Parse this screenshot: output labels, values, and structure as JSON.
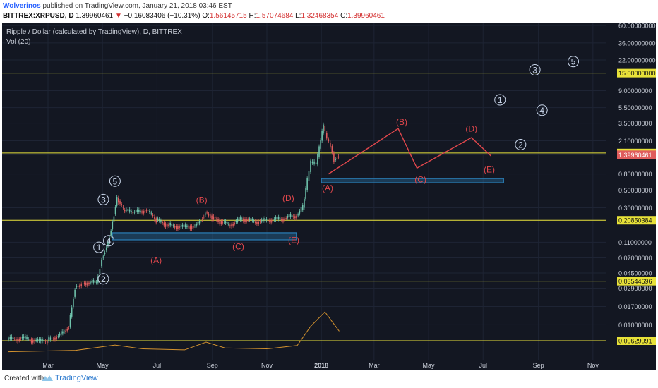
{
  "header": {
    "author": "Wolverinos",
    "published": "published on TradingView.com, January 21, 2018 03:46 EST",
    "symbol": "BITTREX:XRPUSD, D",
    "last": "1.39960461",
    "change": "−0.16083406 (−10.31%)",
    "ohlc": {
      "o_label": "O:",
      "o": "1.56145715",
      "h_label": "H:",
      "h": "1.57074684",
      "l_label": "L:",
      "l": "1.32468354",
      "c_label": "C:",
      "c": "1.39960461"
    }
  },
  "footer": {
    "created": "Created with",
    "brand": "TradingView"
  },
  "colors": {
    "background": "#131722",
    "grid": "#1e2434",
    "up": "#6fc3ac",
    "down": "#e05c5c",
    "level": "#e8e239",
    "zone": "#2a7fb8",
    "wave_red": "#e0474c",
    "wave_blue": "#c9d6ea",
    "volume_ma": "#d3922e"
  },
  "chart_data": {
    "type": "candlestick",
    "title": "Ripple / Dollar (calculated by TradingView), D, BITTREX",
    "indicator": "Vol (20)",
    "y_scale": "log",
    "y_ticks": [
      "60.00000000",
      "36.00000000",
      "22.00000000",
      "15.00000000",
      "9.00000000",
      "5.50000000",
      "3.50000000",
      "2.10000000",
      "1.47387216",
      "1.39960461",
      "0.80000000",
      "0.50000000",
      "0.30000000",
      "0.20850384",
      "0.11000000",
      "0.07000000",
      "0.04500000",
      "0.03544696",
      "0.02900000",
      "0.01700000",
      "0.01000000",
      "0.00629091"
    ],
    "x_ticks": [
      "Mar",
      "May",
      "Jul",
      "Sep",
      "Nov",
      "2018",
      "Mar",
      "May",
      "Jul",
      "Sep",
      "Nov"
    ],
    "price_series": [
      [
        "2017-01-15",
        0.0065
      ],
      [
        "2017-02-01",
        0.0068
      ],
      [
        "2017-02-20",
        0.0062
      ],
      [
        "2017-03-01",
        0.0063
      ],
      [
        "2017-03-15",
        0.0075
      ],
      [
        "2017-03-25",
        0.0095
      ],
      [
        "2017-04-01",
        0.03
      ],
      [
        "2017-04-10",
        0.034
      ],
      [
        "2017-04-25",
        0.034
      ],
      [
        "2017-05-01",
        0.07
      ],
      [
        "2017-05-08",
        0.11
      ],
      [
        "2017-05-13",
        0.2
      ],
      [
        "2017-05-18",
        0.4
      ],
      [
        "2017-05-25",
        0.28
      ],
      [
        "2017-06-05",
        0.26
      ],
      [
        "2017-06-20",
        0.28
      ],
      [
        "2017-07-01",
        0.21
      ],
      [
        "2017-07-15",
        0.18
      ],
      [
        "2017-08-01",
        0.17
      ],
      [
        "2017-08-15",
        0.18
      ],
      [
        "2017-08-25",
        0.26
      ],
      [
        "2017-09-05",
        0.22
      ],
      [
        "2017-09-20",
        0.18
      ],
      [
        "2017-10-05",
        0.22
      ],
      [
        "2017-10-20",
        0.2
      ],
      [
        "2017-11-05",
        0.21
      ],
      [
        "2017-11-20",
        0.22
      ],
      [
        "2017-12-05",
        0.24
      ],
      [
        "2017-12-12",
        0.3
      ],
      [
        "2017-12-17",
        0.65
      ],
      [
        "2017-12-21",
        1.1
      ],
      [
        "2017-12-27",
        1.05
      ],
      [
        "2018-01-01",
        2.1
      ],
      [
        "2018-01-04",
        3.2
      ],
      [
        "2018-01-08",
        2.2
      ],
      [
        "2018-01-12",
        1.8
      ],
      [
        "2018-01-16",
        1.2
      ],
      [
        "2018-01-21",
        1.4
      ]
    ],
    "levels": [
      15.0,
      1.47387216,
      0.20850384,
      0.03544696,
      0.00629091
    ],
    "zones": [
      {
        "from": "2017-05-12",
        "to": "2017-12-04",
        "low": 0.118,
        "high": 0.145
      },
      {
        "from": "2018-01-01",
        "to": "2018-07-24",
        "low": 0.62,
        "high": 0.7
      }
    ],
    "wave_labels_blue": [
      {
        "label": "1",
        "date": "2017-04-27",
        "value": 0.095
      },
      {
        "label": "2",
        "date": "2017-05-02",
        "value": 0.038
      },
      {
        "label": "3",
        "date": "2017-05-02",
        "value": 0.38
      },
      {
        "label": "4",
        "date": "2017-05-08",
        "value": 0.115
      },
      {
        "label": "5",
        "date": "2017-05-15",
        "value": 0.65
      },
      {
        "label": "1",
        "date": "2018-07-20",
        "value": 6.9
      },
      {
        "label": "2",
        "date": "2018-08-12",
        "value": 1.88
      },
      {
        "label": "3",
        "date": "2018-08-28",
        "value": 16.5
      },
      {
        "label": "4",
        "date": "2018-09-05",
        "value": 5.1
      },
      {
        "label": "5",
        "date": "2018-10-10",
        "value": 21.0
      }
    ],
    "wave_labels_red": [
      {
        "label": "(A)",
        "date": "2017-06-30",
        "value": 0.066
      },
      {
        "label": "(B)",
        "date": "2017-08-20",
        "value": 0.38
      },
      {
        "label": "(C)",
        "date": "2017-09-30",
        "value": 0.098
      },
      {
        "label": "(D)",
        "date": "2017-11-25",
        "value": 0.4
      },
      {
        "label": "(E)",
        "date": "2017-12-01",
        "value": 0.118
      },
      {
        "label": "(A)",
        "date": "2018-01-08",
        "value": 0.54
      },
      {
        "label": "(B)",
        "date": "2018-04-01",
        "value": 3.65
      },
      {
        "label": "(C)",
        "date": "2018-04-22",
        "value": 0.69
      },
      {
        "label": "(D)",
        "date": "2018-06-18",
        "value": 3.0
      },
      {
        "label": "(E)",
        "date": "2018-07-08",
        "value": 0.92
      }
    ],
    "projection_path": [
      [
        "2018-01-09",
        0.8
      ],
      [
        "2018-03-28",
        3.0
      ],
      [
        "2018-04-18",
        0.95
      ],
      [
        "2018-06-18",
        2.3
      ],
      [
        "2018-07-10",
        1.35
      ]
    ],
    "volume_ma": [
      [
        "2017-01-15",
        0.02
      ],
      [
        "2017-04-01",
        0.05
      ],
      [
        "2017-05-15",
        0.16
      ],
      [
        "2017-06-15",
        0.08
      ],
      [
        "2017-08-01",
        0.06
      ],
      [
        "2017-08-25",
        0.22
      ],
      [
        "2017-09-15",
        0.1
      ],
      [
        "2017-11-01",
        0.08
      ],
      [
        "2017-12-05",
        0.15
      ],
      [
        "2017-12-20",
        0.55
      ],
      [
        "2018-01-05",
        0.85
      ],
      [
        "2018-01-21",
        0.45
      ]
    ]
  }
}
